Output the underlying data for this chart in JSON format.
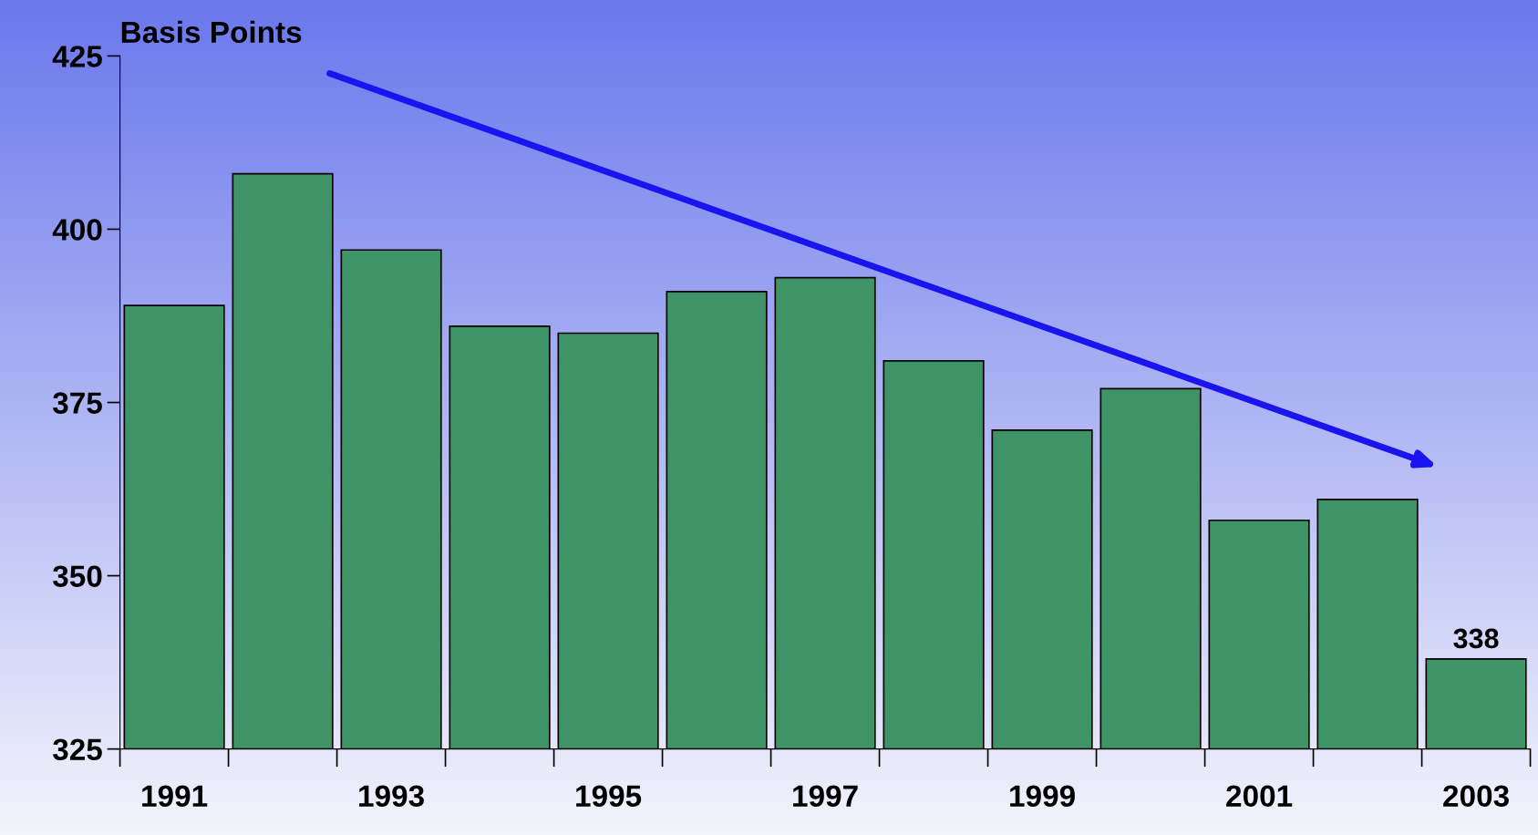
{
  "chart_data": {
    "type": "bar",
    "ylabel": "Basis Points",
    "categories": [
      "1991",
      null,
      "1993",
      null,
      "1995",
      null,
      "1997",
      null,
      "1999",
      null,
      "2001",
      null,
      "2003"
    ],
    "values": [
      389,
      408,
      397,
      386,
      385,
      391,
      393,
      381,
      371,
      377,
      358,
      361,
      338
    ],
    "value_labels": [
      null,
      null,
      null,
      null,
      null,
      null,
      null,
      null,
      null,
      null,
      null,
      null,
      "338"
    ],
    "color": "#3e9467",
    "ylim": [
      325,
      425
    ],
    "yticks": [
      325,
      350,
      375,
      400,
      425
    ],
    "grid": false,
    "legend": false
  }
}
